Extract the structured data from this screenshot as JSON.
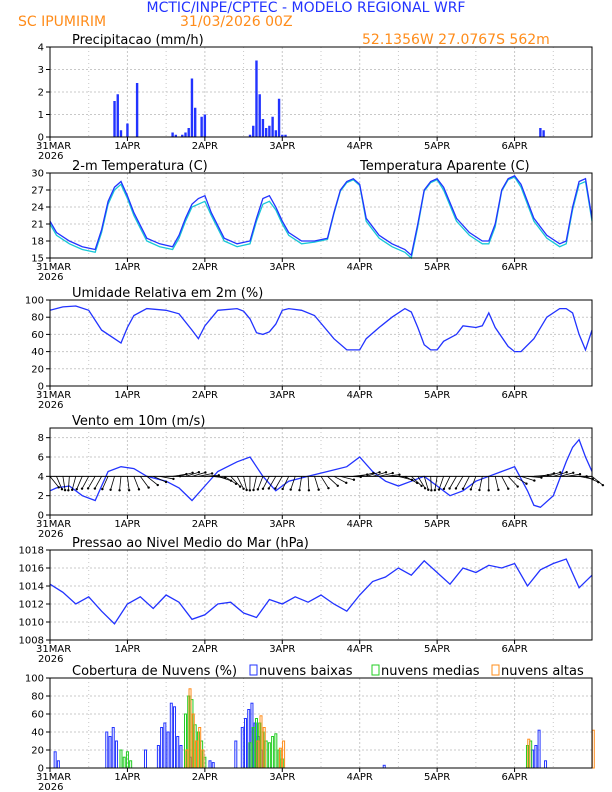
{
  "header": {
    "title": "MCTIC/INPE/CPTEC - MODELO REGIONAL WRF",
    "station": "SC IPUMIRIM",
    "run": "31/03/2026 00Z",
    "coords": "52.1356W 27.0767S 562m",
    "title_color": "#2233ff",
    "sub_color": "#ff8c1a"
  },
  "xaxis": {
    "labels": [
      "31MAR",
      "1APR",
      "2APR",
      "3APR",
      "4APR",
      "5APR",
      "6APR"
    ],
    "year": "2026",
    "hours_total": 168
  },
  "colors": {
    "series": "#2233ff",
    "apparent": "#17c7d6",
    "low": "#2233ff",
    "mid": "#22cc22",
    "high": "#ff8c1a",
    "grid": "#c8c8c8"
  },
  "chart_data": [
    {
      "id": "precip",
      "type": "bar",
      "title": "Precipitacao (mm/h)",
      "ylim": [
        0,
        4
      ],
      "yticks": [
        0,
        1,
        2,
        3,
        4
      ],
      "x_hours": [
        20,
        21,
        22,
        24,
        27,
        38,
        39,
        41,
        42,
        43,
        44,
        45,
        47,
        48,
        62,
        63,
        64,
        65,
        66,
        67,
        68,
        69,
        70,
        71,
        72,
        73,
        152,
        153
      ],
      "values": [
        1.6,
        1.9,
        0.3,
        0.6,
        2.4,
        0.2,
        0.1,
        0.1,
        0.2,
        0.4,
        2.6,
        1.3,
        0.9,
        1.0,
        0.1,
        0.5,
        3.4,
        1.9,
        0.8,
        0.4,
        0.5,
        0.9,
        0.3,
        1.7,
        0.1,
        0.1,
        0.4,
        0.3
      ]
    },
    {
      "id": "temp",
      "type": "line",
      "title": "2-m Temperatura (C)",
      "legend": "Temperatura Aparente (C)",
      "ylim": [
        15,
        30
      ],
      "yticks": [
        15,
        18,
        21,
        24,
        27,
        30
      ],
      "series": [
        {
          "name": "2-m Temperatura (C)",
          "x": [
            0,
            2,
            6,
            10,
            14,
            16,
            18,
            20,
            22,
            24,
            26,
            30,
            34,
            38,
            40,
            42,
            44,
            46,
            48,
            50,
            54,
            58,
            62,
            64,
            66,
            68,
            70,
            72,
            74,
            78,
            82,
            86,
            88,
            90,
            92,
            94,
            96,
            98,
            102,
            106,
            110,
            112,
            114,
            116,
            118,
            120,
            122,
            126,
            130,
            134,
            136,
            138,
            140,
            142,
            144,
            146,
            150,
            154,
            158,
            160,
            162,
            164,
            166,
            168
          ],
          "values": [
            21.5,
            19.5,
            18.0,
            17.0,
            16.5,
            20.0,
            25.0,
            27.5,
            28.5,
            26.0,
            23.0,
            18.5,
            17.5,
            17.0,
            19.0,
            22.0,
            24.5,
            25.5,
            26.0,
            23.0,
            18.5,
            17.5,
            18.0,
            22.0,
            25.5,
            26.0,
            24.0,
            21.5,
            19.5,
            18.0,
            18.0,
            18.5,
            23.0,
            27.0,
            28.5,
            29.0,
            28.0,
            22.0,
            19.0,
            17.5,
            16.5,
            15.5,
            21.0,
            27.0,
            28.5,
            29.0,
            27.5,
            22.0,
            19.5,
            18.0,
            18.0,
            21.0,
            27.0,
            29.0,
            29.5,
            28.0,
            22.0,
            19.0,
            17.5,
            18.0,
            24.0,
            28.5,
            29.0,
            22.0
          ]
        },
        {
          "name": "Temperatura Aparente (C)",
          "x": [
            0,
            2,
            6,
            10,
            14,
            16,
            18,
            20,
            22,
            24,
            26,
            30,
            34,
            38,
            40,
            42,
            44,
            46,
            48,
            50,
            54,
            58,
            62,
            64,
            66,
            68,
            70,
            72,
            74,
            78,
            82,
            86,
            88,
            90,
            92,
            94,
            96,
            98,
            102,
            106,
            110,
            112,
            114,
            116,
            118,
            120,
            122,
            126,
            130,
            134,
            136,
            138,
            140,
            142,
            144,
            146,
            150,
            154,
            158,
            160,
            162,
            164,
            166,
            168
          ],
          "values": [
            21.0,
            19.0,
            17.5,
            16.5,
            16.0,
            19.5,
            24.5,
            27.0,
            28.0,
            25.5,
            22.5,
            18.0,
            17.0,
            16.5,
            18.5,
            21.5,
            24.0,
            24.5,
            25.0,
            22.5,
            18.0,
            17.0,
            17.5,
            21.5,
            24.5,
            25.0,
            23.5,
            21.0,
            19.0,
            17.5,
            17.8,
            18.3,
            22.8,
            26.8,
            28.3,
            28.8,
            27.8,
            21.5,
            18.5,
            17.0,
            16.0,
            15.0,
            20.5,
            26.8,
            28.3,
            28.8,
            27.0,
            21.5,
            19.0,
            17.5,
            17.5,
            20.5,
            26.8,
            28.8,
            29.3,
            27.5,
            21.5,
            18.5,
            17.0,
            17.5,
            23.5,
            28.0,
            28.5,
            21.5
          ]
        }
      ]
    },
    {
      "id": "rh",
      "type": "line",
      "title": "Umidade Relativa em 2m (%)",
      "ylim": [
        0,
        100
      ],
      "yticks": [
        0,
        20,
        40,
        60,
        80,
        100
      ],
      "series": [
        {
          "name": "Umidade Relativa em 2m (%)",
          "x": [
            0,
            4,
            8,
            12,
            16,
            20,
            22,
            24,
            26,
            30,
            36,
            40,
            44,
            46,
            48,
            52,
            58,
            60,
            62,
            64,
            66,
            68,
            70,
            72,
            74,
            78,
            82,
            88,
            92,
            96,
            98,
            102,
            106,
            110,
            112,
            114,
            116,
            118,
            120,
            122,
            126,
            128,
            132,
            134,
            136,
            138,
            142,
            144,
            146,
            150,
            154,
            158,
            160,
            162,
            164,
            166,
            168
          ],
          "values": [
            88,
            92,
            93,
            88,
            65,
            55,
            50,
            68,
            82,
            90,
            88,
            84,
            65,
            55,
            70,
            88,
            90,
            87,
            78,
            62,
            60,
            63,
            72,
            88,
            90,
            88,
            82,
            55,
            42,
            42,
            55,
            68,
            80,
            90,
            86,
            68,
            48,
            42,
            42,
            52,
            60,
            70,
            68,
            70,
            85,
            68,
            46,
            40,
            40,
            55,
            80,
            90,
            90,
            85,
            60,
            42,
            65
          ]
        }
      ]
    },
    {
      "id": "wind",
      "type": "line",
      "title": "Vento em 10m (m/s)",
      "ylim": [
        0,
        9
      ],
      "yticks": [
        0,
        2,
        4,
        6,
        8
      ],
      "series": [
        {
          "name": "Vento em 10m (m/s)",
          "x": [
            0,
            2,
            6,
            10,
            14,
            16,
            18,
            22,
            26,
            30,
            36,
            40,
            44,
            48,
            52,
            58,
            62,
            66,
            70,
            74,
            80,
            86,
            92,
            96,
            100,
            104,
            108,
            112,
            116,
            120,
            124,
            128,
            132,
            136,
            140,
            144,
            148,
            150,
            152,
            156,
            160,
            162,
            164,
            166,
            168
          ],
          "values": [
            2.5,
            2.8,
            3.0,
            2.0,
            1.5,
            3.0,
            4.5,
            5.0,
            4.8,
            4.0,
            3.5,
            2.8,
            1.5,
            3.0,
            4.5,
            5.5,
            6.0,
            4.0,
            2.5,
            3.5,
            4.0,
            4.5,
            5.0,
            6.0,
            4.5,
            3.5,
            3.0,
            3.5,
            4.0,
            3.0,
            2.0,
            2.5,
            3.5,
            4.0,
            4.5,
            5.0,
            2.5,
            1.0,
            0.8,
            2.0,
            5.5,
            7.0,
            7.8,
            6.0,
            4.5
          ]
        }
      ]
    },
    {
      "id": "pressure",
      "type": "line",
      "title": "Pressao ao Nivel Medio do Mar (hPa)",
      "ylim": [
        1008,
        1018
      ],
      "yticks": [
        1008,
        1010,
        1012,
        1014,
        1016,
        1018
      ],
      "series": [
        {
          "name": "Pressao ao Nivel Medio do Mar (hPa)",
          "x": [
            0,
            4,
            8,
            12,
            16,
            20,
            24,
            28,
            32,
            36,
            40,
            44,
            48,
            52,
            56,
            60,
            64,
            68,
            72,
            76,
            80,
            84,
            88,
            92,
            96,
            100,
            104,
            108,
            112,
            116,
            120,
            124,
            128,
            132,
            136,
            140,
            144,
            148,
            152,
            156,
            160,
            164,
            168
          ],
          "values": [
            1014.2,
            1013.3,
            1012.0,
            1012.8,
            1011.2,
            1009.8,
            1012.0,
            1012.8,
            1011.5,
            1013.0,
            1012.2,
            1010.3,
            1010.8,
            1012.0,
            1012.2,
            1011.0,
            1010.5,
            1012.5,
            1012.0,
            1012.8,
            1012.2,
            1013.0,
            1012.0,
            1011.2,
            1013.0,
            1014.5,
            1015.0,
            1016.0,
            1015.2,
            1016.8,
            1015.5,
            1014.2,
            1016.0,
            1015.5,
            1016.3,
            1016.0,
            1016.5,
            1014.0,
            1015.8,
            1016.5,
            1017.0,
            1013.8,
            1015.2
          ]
        }
      ]
    },
    {
      "id": "clouds",
      "type": "bar",
      "title": "Cobertura de Nuvens (%)",
      "legend": [
        "nuvens baixas",
        "nuvens medias",
        "nuvens altas"
      ],
      "ylim": [
        0,
        100
      ],
      "yticks": [
        0,
        20,
        40,
        60,
        80,
        100
      ],
      "series": [
        {
          "name": "nuvens baixas",
          "x_hours": [
            2,
            3,
            18,
            19,
            20,
            21,
            30,
            34,
            35,
            36,
            37,
            38,
            39,
            40,
            41,
            44,
            50,
            51,
            58,
            60,
            61,
            62,
            63,
            64,
            65,
            66,
            104,
            150,
            151,
            152,
            154
          ],
          "values": [
            18,
            8,
            40,
            35,
            45,
            30,
            20,
            25,
            45,
            50,
            40,
            72,
            68,
            35,
            25,
            12,
            8,
            6,
            30,
            45,
            55,
            65,
            72,
            50,
            35,
            20,
            3,
            20,
            25,
            42,
            8
          ]
        },
        {
          "name": "nuvens medias",
          "x_hours": [
            22,
            23,
            24,
            25,
            42,
            43,
            44,
            45,
            46,
            47,
            48,
            62,
            63,
            64,
            65,
            66,
            67,
            68,
            69,
            70,
            71,
            72,
            148,
            149
          ],
          "values": [
            20,
            12,
            18,
            8,
            60,
            80,
            76,
            48,
            40,
            30,
            12,
            28,
            45,
            55,
            50,
            40,
            30,
            28,
            35,
            38,
            20,
            10,
            25,
            30
          ]
        },
        {
          "name": "nuvens altas",
          "x_hours": [
            42,
            43,
            44,
            45,
            46,
            47,
            64,
            65,
            66,
            71,
            72,
            148,
            168
          ],
          "values": [
            20,
            88,
            60,
            30,
            45,
            20,
            30,
            58,
            45,
            22,
            30,
            32,
            42
          ]
        }
      ]
    }
  ]
}
